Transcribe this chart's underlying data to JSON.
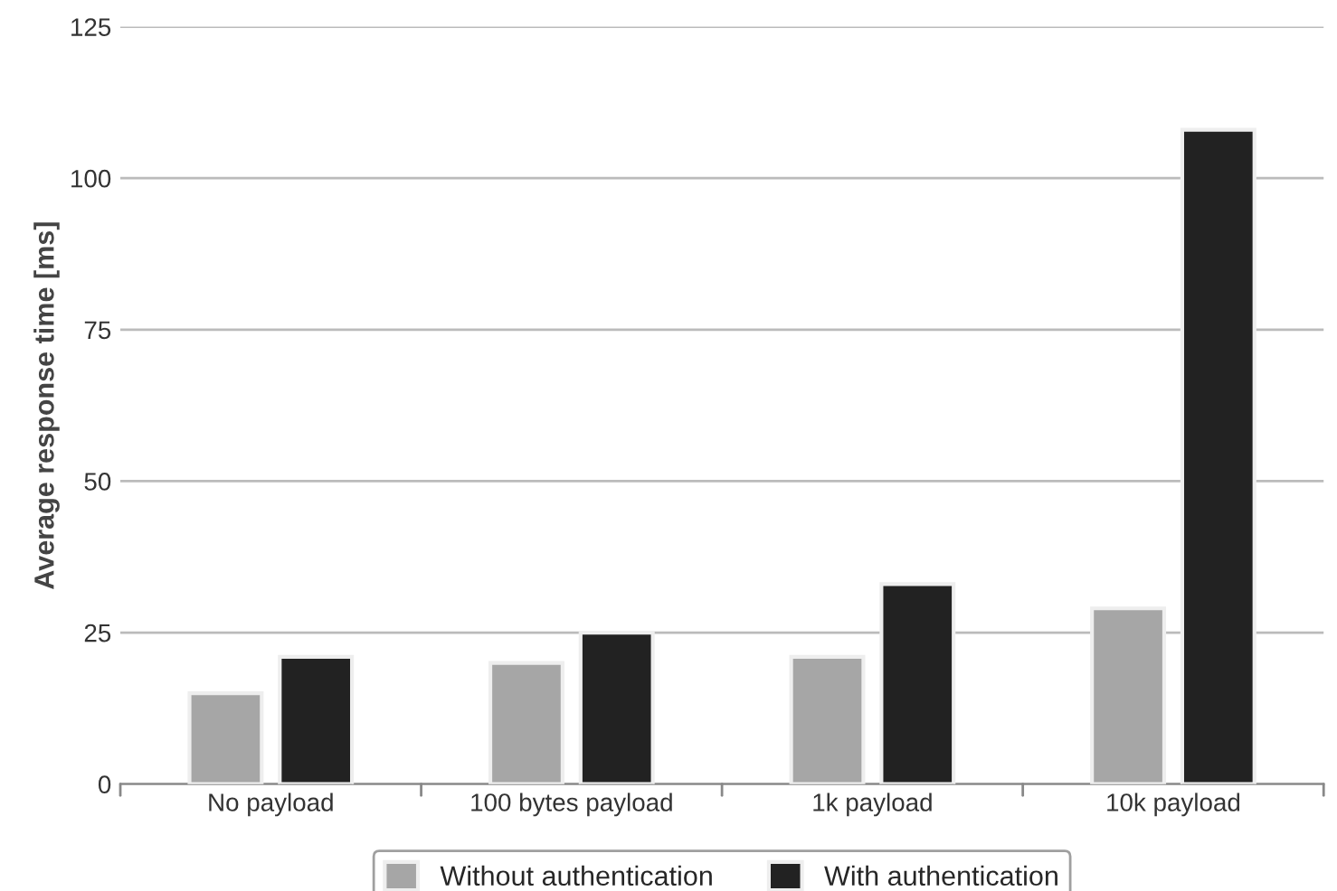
{
  "chart_data": {
    "type": "bar",
    "ylabel": "Average response time [ms]",
    "categories": [
      "No payload",
      "100 bytes payload",
      "1k payload",
      "10k payload"
    ],
    "series": [
      {
        "name": "Without authentication",
        "color": "#a6a6a6",
        "values": [
          15,
          20,
          21,
          29
        ]
      },
      {
        "name": "With authentication",
        "color": "#222222",
        "values": [
          21,
          25,
          33,
          108
        ]
      }
    ],
    "ylim": [
      0,
      125
    ],
    "yticks": [
      0,
      25,
      50,
      75,
      100,
      125
    ],
    "grid": "y",
    "legend": "bottom"
  }
}
